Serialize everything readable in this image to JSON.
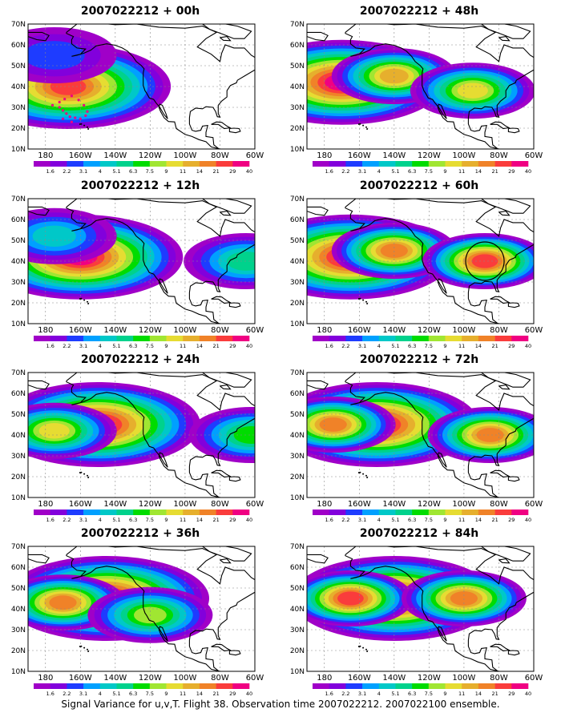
{
  "colors": {
    "scale": [
      "#a000c8",
      "#8200dc",
      "#1e3cff",
      "#00a0ff",
      "#00c8c8",
      "#00d28c",
      "#00dc00",
      "#a0e632",
      "#e6dc32",
      "#e6af2d",
      "#f08228",
      "#fa3c3c",
      "#f00082"
    ]
  },
  "axes": {
    "lat_labels": [
      "70N",
      "60N",
      "50N",
      "40N",
      "30N",
      "20N",
      "10N"
    ],
    "lon_labels": [
      "180",
      "160W",
      "140W",
      "120W",
      "100W",
      "80W",
      "60W"
    ]
  },
  "colorbar": {
    "labels": [
      "1.6",
      "2.2",
      "3.1",
      "4",
      "5.1",
      "6.3",
      "7.5",
      "9",
      "11",
      "14",
      "21",
      "29",
      "40"
    ]
  },
  "panels": [
    {
      "title": "2007022212 + 00h",
      "blobs": [
        {
          "lon": -167,
          "lat": 40,
          "peak": 11
        },
        {
          "lon": -175,
          "lat": 55,
          "peak": 2
        }
      ],
      "marks": "dots"
    },
    {
      "title": "2007022212 + 12h",
      "blobs": [
        {
          "lon": -160,
          "lat": 42,
          "peak": 12
        },
        {
          "lon": -175,
          "lat": 52,
          "peak": 4
        },
        {
          "lon": -65,
          "lat": 40,
          "peak": 5
        }
      ],
      "marks": ""
    },
    {
      "title": "2007022212 + 24h",
      "blobs": [
        {
          "lon": -150,
          "lat": 45,
          "peak": 12
        },
        {
          "lon": -175,
          "lat": 42,
          "peak": 8
        },
        {
          "lon": -62,
          "lat": 40,
          "peak": 6
        }
      ],
      "marks": ""
    },
    {
      "title": "2007022212 + 36h",
      "blobs": [
        {
          "lon": -145,
          "lat": 45,
          "peak": 12
        },
        {
          "lon": -170,
          "lat": 43,
          "peak": 10
        },
        {
          "lon": -120,
          "lat": 37,
          "peak": 7
        }
      ],
      "marks": ""
    },
    {
      "title": "2007022212 + 48h",
      "blobs": [
        {
          "lon": -170,
          "lat": 42,
          "peak": 12
        },
        {
          "lon": -140,
          "lat": 45,
          "peak": 9
        },
        {
          "lon": -95,
          "lat": 38,
          "peak": 8
        }
      ],
      "marks": ""
    },
    {
      "title": "2007022212 + 60h",
      "blobs": [
        {
          "lon": -165,
          "lat": 42,
          "peak": 12
        },
        {
          "lon": -140,
          "lat": 45,
          "peak": 10
        },
        {
          "lon": -88,
          "lat": 40,
          "peak": 11
        }
      ],
      "marks": "circle"
    },
    {
      "title": "2007022212 + 72h",
      "blobs": [
        {
          "lon": -150,
          "lat": 45,
          "peak": 12
        },
        {
          "lon": -175,
          "lat": 45,
          "peak": 10
        },
        {
          "lon": -85,
          "lat": 40,
          "peak": 10
        }
      ],
      "marks": ""
    },
    {
      "title": "2007022212 + 84h",
      "blobs": [
        {
          "lon": -140,
          "lat": 45,
          "peak": 12
        },
        {
          "lon": -165,
          "lat": 45,
          "peak": 11
        },
        {
          "lon": -100,
          "lat": 45,
          "peak": 10
        }
      ],
      "marks": ""
    }
  ],
  "caption": "Signal Variance for u,v,T. Flight 38. Observation time 2007022212. 2007022100 ensemble."
}
